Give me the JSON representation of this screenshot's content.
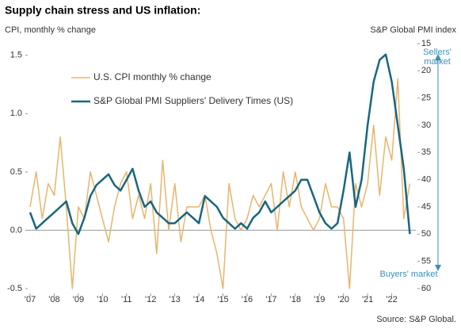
{
  "chart_data": {
    "type": "line",
    "title": "Supply chain stress and US inflation:",
    "y_label": "CPI, monthly % change",
    "y2_label": "S&P Global PMI index",
    "annotations": [
      "Sellers' market",
      "Buyers' market"
    ],
    "source": "Source: S&P Global.",
    "legend": "upper left",
    "x": [
      2007,
      2007.25,
      2007.5,
      2007.75,
      2008,
      2008.25,
      2008.5,
      2008.75,
      2009,
      2009.25,
      2009.5,
      2009.75,
      2010,
      2010.25,
      2010.5,
      2010.75,
      2011,
      2011.25,
      2011.5,
      2011.75,
      2012,
      2012.25,
      2012.5,
      2012.75,
      2013,
      2013.25,
      2013.5,
      2013.75,
      2014,
      2014.25,
      2014.5,
      2014.75,
      2015,
      2015.25,
      2015.5,
      2015.75,
      2016,
      2016.25,
      2016.5,
      2016.75,
      2017,
      2017.25,
      2017.5,
      2017.75,
      2018,
      2018.25,
      2018.5,
      2018.75,
      2019,
      2019.25,
      2019.5,
      2019.75,
      2020,
      2020.25,
      2020.5,
      2020.75,
      2021,
      2021.25,
      2021.5,
      2021.75,
      2022,
      2022.25,
      2022.5,
      2022.75
    ],
    "xlim": [
      2006.9,
      2023
    ],
    "xticks": [
      {
        "value": 2007,
        "label": "'07"
      },
      {
        "value": 2008,
        "label": "'08"
      },
      {
        "value": 2009,
        "label": "'09"
      },
      {
        "value": 2010,
        "label": "'10"
      },
      {
        "value": 2011,
        "label": "'11"
      },
      {
        "value": 2012,
        "label": "'12"
      },
      {
        "value": 2013,
        "label": "'13"
      },
      {
        "value": 2014,
        "label": "'14"
      },
      {
        "value": 2015,
        "label": "'15"
      },
      {
        "value": 2016,
        "label": "'16"
      },
      {
        "value": 2017,
        "label": "'17"
      },
      {
        "value": 2018,
        "label": "'18"
      },
      {
        "value": 2019,
        "label": "'19"
      },
      {
        "value": 2020,
        "label": "'20"
      },
      {
        "value": 2021,
        "label": "'21"
      },
      {
        "value": 2022,
        "label": "'22"
      }
    ],
    "ylim": [
      -0.5,
      1.6
    ],
    "yticks": [
      -0.5,
      {
        "value": 0,
        "label": "0.0"
      },
      0.5,
      {
        "value": 1,
        "label": "1.0"
      },
      1.5
    ],
    "y2lim": [
      60,
      15
    ],
    "y2ticks": [
      15,
      20,
      25,
      30,
      35,
      40,
      45,
      50,
      55,
      60
    ],
    "series": [
      {
        "name": "U.S. CPI monthly % change",
        "color": "#e9b46c",
        "values": [
          0.2,
          0.5,
          0.1,
          0.4,
          0.3,
          0.8,
          0.2,
          -0.5,
          0.2,
          0.1,
          0.5,
          0.3,
          0.1,
          -0.1,
          0.2,
          0.4,
          0.5,
          0.1,
          0.3,
          0.1,
          0.4,
          -0.2,
          0.6,
          0.0,
          0.4,
          -0.1,
          0.2,
          0.2,
          0.2,
          0.3,
          0.0,
          -0.2,
          -0.5,
          0.4,
          0.1,
          0.0,
          0.1,
          0.3,
          0.2,
          0.3,
          0.4,
          0.0,
          0.5,
          0.2,
          0.5,
          0.2,
          0.1,
          0.0,
          0.1,
          0.4,
          0.2,
          0.2,
          0.1,
          -0.5,
          0.4,
          0.2,
          0.4,
          0.9,
          0.3,
          0.8,
          0.6,
          1.3,
          0.1,
          0.4
        ]
      },
      {
        "name": "S&P Global PMI Suppliers' Delivery Times (US)",
        "color": "#17677f",
        "axis": "y2",
        "values": [
          46,
          49,
          48,
          47,
          46,
          45,
          44,
          48,
          50,
          47,
          43,
          41,
          40,
          39,
          41,
          42,
          40,
          38,
          42,
          45,
          44,
          46,
          47,
          48,
          48,
          47,
          46,
          47,
          48,
          43,
          44,
          45,
          47,
          48,
          49,
          48,
          49,
          47,
          46,
          44,
          46,
          45,
          44,
          43,
          42,
          40,
          40,
          43,
          46,
          48,
          49,
          48,
          42,
          35,
          45,
          40,
          30,
          22,
          18,
          17,
          22,
          30,
          38,
          50
        ]
      }
    ]
  }
}
